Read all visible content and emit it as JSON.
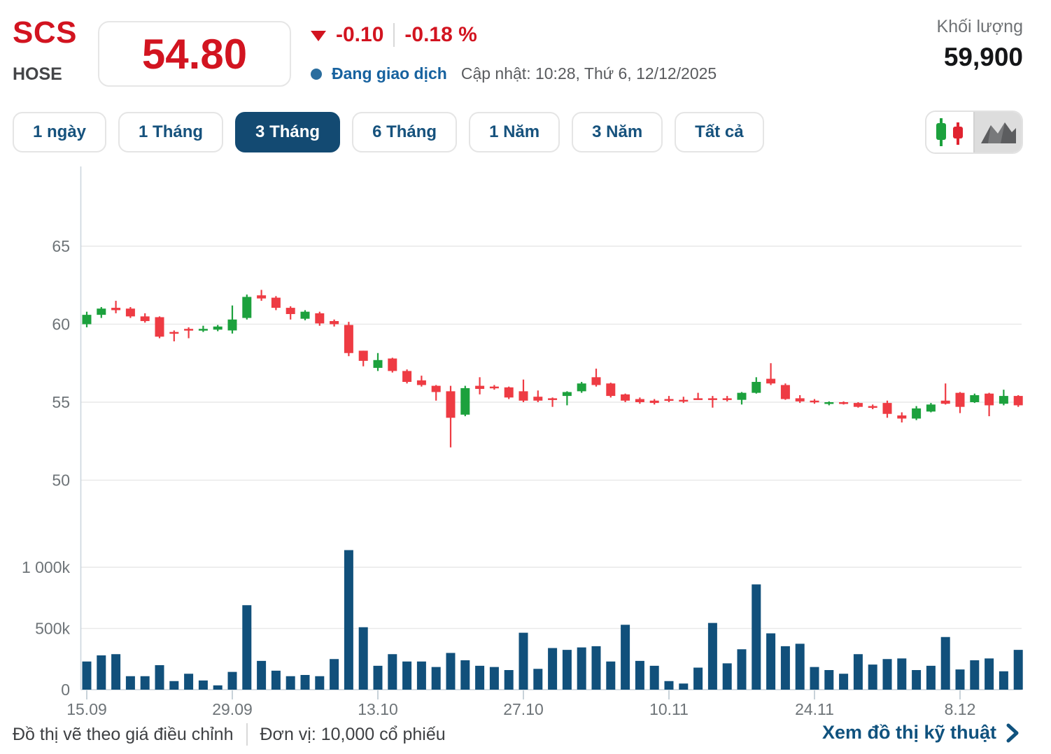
{
  "header": {
    "ticker": "SCS",
    "exchange": "HOSE",
    "price": "54.80",
    "change": "-0.10",
    "change_pct": "-0.18 %",
    "status_label": "Đang giao dịch",
    "updated_label": "Cập nhật: 10:28, Thứ 6, 12/12/2025",
    "volume_label": "Khối lượng",
    "volume_value": "59,900"
  },
  "ranges": [
    {
      "label": "1 ngày",
      "active": false
    },
    {
      "label": "1 Tháng",
      "active": false
    },
    {
      "label": "3 Tháng",
      "active": true
    },
    {
      "label": "6 Tháng",
      "active": false
    },
    {
      "label": "1 Năm",
      "active": false
    },
    {
      "label": "3 Năm",
      "active": false
    },
    {
      "label": "Tất cả",
      "active": false
    }
  ],
  "chart_toggle": {
    "options": [
      "candlestick-icon",
      "area-icon"
    ],
    "selected": "candlestick-icon"
  },
  "colors": {
    "up": "#1ca13d",
    "down": "#ee3b43",
    "volume_bar": "#11507b",
    "grid": "#e9e9e9",
    "axis": "#ccd6de",
    "tick_text": "#6e7478",
    "accent_red": "#d21420",
    "navy": "#134a72"
  },
  "chart_data": {
    "type": "candlestick",
    "title": "SCS 3 Tháng price chart with volume",
    "price_axis_ticks": [
      65,
      60,
      55,
      50
    ],
    "volume_axis_ticks": [
      "1 000k",
      "500k",
      "0"
    ],
    "volume_axis_values": [
      1000,
      500,
      0
    ],
    "x_labels": [
      "15.09",
      "29.09",
      "13.10",
      "27.10",
      "10.11",
      "24.11",
      "8.12"
    ],
    "x_label_indices": [
      0,
      10,
      20,
      30,
      40,
      50,
      60
    ],
    "ylim_price": [
      49.5,
      67.5
    ],
    "ylim_volume": [
      0,
      1300
    ],
    "volume_unit_note": "values in thousands (k)",
    "candles_ohlc": [
      [
        60.0,
        60.8,
        59.8,
        60.6
      ],
      [
        60.6,
        61.1,
        60.4,
        61.0
      ],
      [
        61.05,
        61.5,
        60.7,
        60.9
      ],
      [
        61.0,
        61.1,
        60.4,
        60.5
      ],
      [
        60.5,
        60.7,
        60.1,
        60.2
      ],
      [
        60.45,
        60.5,
        59.1,
        59.2
      ],
      [
        59.5,
        59.6,
        58.9,
        59.4
      ],
      [
        59.7,
        59.8,
        59.1,
        59.6
      ],
      [
        59.7,
        59.9,
        59.5,
        59.7
      ],
      [
        59.65,
        59.95,
        59.55,
        59.85
      ],
      [
        59.6,
        61.2,
        59.4,
        60.3
      ],
      [
        60.4,
        61.9,
        60.3,
        61.75
      ],
      [
        61.85,
        62.2,
        61.5,
        61.65
      ],
      [
        61.7,
        61.8,
        60.9,
        61.05
      ],
      [
        61.05,
        61.15,
        60.3,
        60.65
      ],
      [
        60.35,
        60.9,
        60.25,
        60.8
      ],
      [
        60.7,
        60.8,
        59.9,
        60.05
      ],
      [
        60.2,
        60.3,
        59.85,
        60.0
      ],
      [
        59.95,
        60.15,
        57.95,
        58.15
      ],
      [
        58.3,
        58.3,
        57.3,
        57.65
      ],
      [
        57.2,
        58.15,
        57.0,
        57.7
      ],
      [
        57.8,
        57.85,
        56.9,
        57.0
      ],
      [
        57.0,
        57.1,
        56.2,
        56.3
      ],
      [
        56.4,
        56.7,
        56.0,
        56.1
      ],
      [
        56.05,
        56.1,
        55.1,
        55.65
      ],
      [
        55.7,
        56.05,
        52.1,
        54.0
      ],
      [
        54.2,
        56.05,
        54.1,
        55.9
      ],
      [
        56.05,
        56.6,
        55.5,
        55.85
      ],
      [
        56.0,
        56.1,
        55.8,
        55.9
      ],
      [
        55.95,
        56.0,
        55.2,
        55.3
      ],
      [
        55.7,
        56.45,
        55.0,
        55.1
      ],
      [
        55.35,
        55.75,
        55.0,
        55.1
      ],
      [
        55.25,
        55.3,
        54.7,
        55.15
      ],
      [
        55.4,
        55.7,
        54.8,
        55.65
      ],
      [
        55.7,
        56.3,
        55.6,
        56.2
      ],
      [
        56.6,
        57.15,
        56.0,
        56.1
      ],
      [
        56.2,
        56.25,
        55.3,
        55.4
      ],
      [
        55.5,
        55.55,
        55.0,
        55.1
      ],
      [
        55.2,
        55.3,
        54.9,
        55.0
      ],
      [
        55.1,
        55.2,
        54.85,
        54.95
      ],
      [
        55.2,
        55.4,
        55.0,
        55.1
      ],
      [
        55.15,
        55.35,
        54.95,
        55.05
      ],
      [
        55.25,
        55.6,
        55.15,
        55.2
      ],
      [
        55.25,
        55.4,
        54.65,
        55.2
      ],
      [
        55.25,
        55.4,
        55.05,
        55.15
      ],
      [
        55.15,
        55.65,
        54.85,
        55.6
      ],
      [
        55.6,
        56.6,
        55.55,
        56.3
      ],
      [
        56.5,
        57.5,
        56.1,
        56.2
      ],
      [
        56.1,
        56.2,
        55.15,
        55.2
      ],
      [
        55.25,
        55.45,
        54.95,
        55.05
      ],
      [
        55.1,
        55.2,
        54.9,
        55.0
      ],
      [
        54.9,
        55.05,
        54.8,
        55.0
      ],
      [
        55.0,
        55.05,
        54.85,
        54.95
      ],
      [
        54.95,
        55.0,
        54.65,
        54.7
      ],
      [
        54.75,
        54.85,
        54.55,
        54.65
      ],
      [
        54.95,
        55.1,
        54.0,
        54.25
      ],
      [
        54.15,
        54.35,
        53.7,
        53.95
      ],
      [
        53.95,
        54.75,
        53.85,
        54.6
      ],
      [
        54.4,
        54.95,
        54.35,
        54.85
      ],
      [
        55.1,
        56.2,
        54.85,
        54.9
      ],
      [
        55.6,
        55.65,
        54.3,
        54.7
      ],
      [
        55.0,
        55.55,
        54.95,
        55.45
      ],
      [
        55.55,
        55.6,
        54.1,
        54.8
      ],
      [
        54.9,
        55.8,
        54.8,
        55.4
      ],
      [
        55.4,
        55.45,
        54.7,
        54.8
      ]
    ],
    "volumes_k": [
      230,
      280,
      290,
      110,
      110,
      200,
      70,
      130,
      75,
      35,
      145,
      690,
      235,
      155,
      110,
      120,
      110,
      250,
      1140,
      510,
      195,
      290,
      230,
      230,
      185,
      300,
      240,
      195,
      185,
      160,
      465,
      170,
      340,
      325,
      345,
      355,
      230,
      530,
      235,
      195,
      70,
      50,
      180,
      545,
      215,
      330,
      860,
      460,
      355,
      375,
      185,
      160,
      130,
      290,
      205,
      250,
      255,
      160,
      195,
      430,
      165,
      240,
      255,
      150,
      325
    ]
  },
  "footer": {
    "note_adjusted": "Đồ thị vẽ theo giá điều chỉnh",
    "note_unit": "Đơn vị: 10,000 cổ phiếu",
    "link_label": "Xem đồ thị kỹ thuật"
  }
}
